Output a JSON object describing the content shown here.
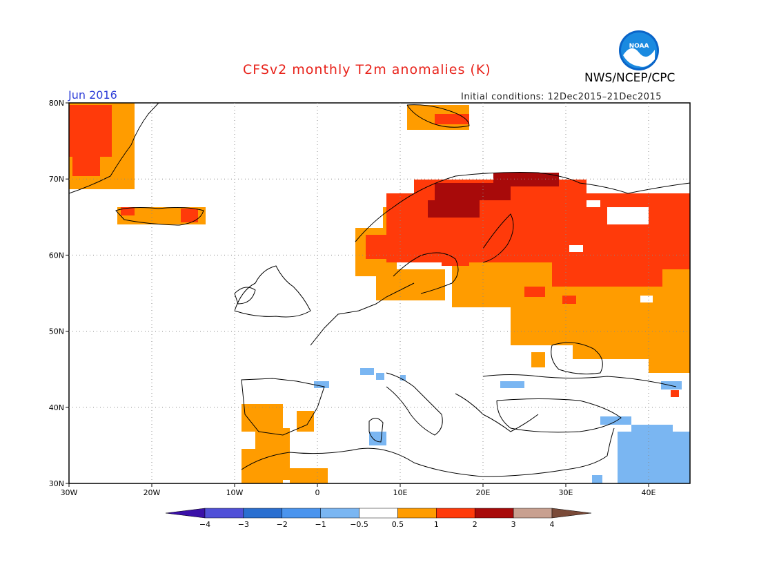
{
  "header": {
    "title": "CFSv2 monthly T2m anomalies (K)",
    "org": "NWS/NCEP/CPC",
    "logo_text": "NOAA",
    "month": "Jun 2016",
    "initial_conditions": "Initial conditions: 12Dec2015–21Dec2015"
  },
  "map": {
    "lat_labels": [
      "80N",
      "70N",
      "60N",
      "50N",
      "40N",
      "30N"
    ],
    "lon_labels": [
      "30W",
      "20W",
      "10W",
      "0",
      "10E",
      "20E",
      "30E",
      "40E"
    ],
    "lat_range": [
      30,
      80
    ],
    "lon_range": [
      -30,
      45
    ],
    "grid": "dotted"
  },
  "colorbar": {
    "labels": [
      "−4",
      "−3",
      "−2",
      "−1",
      "−0.5",
      "0.5",
      "1",
      "2",
      "3",
      "4"
    ],
    "colors": [
      "#3a10a8",
      "#5050d8",
      "#2a6fd0",
      "#4a94ee",
      "#7ab6f2",
      "#ffffff",
      "#ff9c00",
      "#ff3a0a",
      "#a80a0a",
      "#c8a090",
      "#7a4a38"
    ]
  },
  "colors": {
    "title": "#e8221a",
    "month": "#2f3fd8",
    "anomaly_0_5_to_1": "#ff9c00",
    "anomaly_1_to_2": "#ff3a0a",
    "anomaly_2_to_3": "#a80a0a",
    "anomaly_neg_0_5_to_neg_1": "#7ab6f2"
  }
}
